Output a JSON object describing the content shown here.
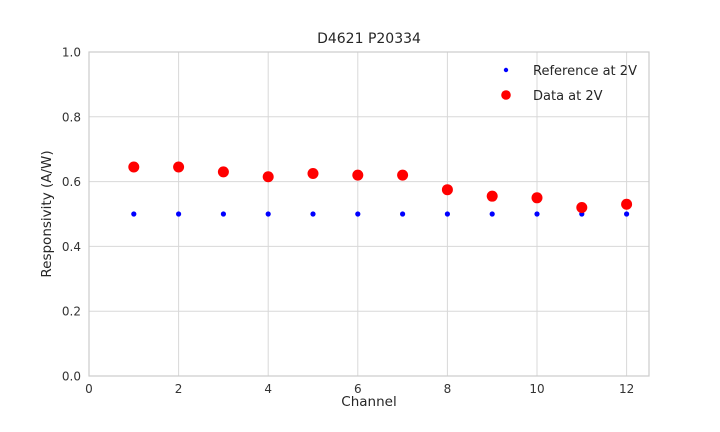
{
  "figure": {
    "background": "#ffffff",
    "grid_color": "#d8d8d8",
    "spine_color": "#cccccc",
    "text_color": "#262626"
  },
  "chart_data": {
    "type": "scatter",
    "title": "D4621 P20334",
    "xlabel": "Channel",
    "ylabel": "Responsivity (A/W)",
    "xlim": [
      0,
      12.5
    ],
    "ylim": [
      0.0,
      1.0
    ],
    "xticks": [
      "0",
      "2",
      "4",
      "6",
      "8",
      "10",
      "12"
    ],
    "yticks": [
      "0.0",
      "0.2",
      "0.4",
      "0.6",
      "0.8",
      "1.0"
    ],
    "grid": true,
    "legend_position": "upper right",
    "x": [
      1,
      2,
      3,
      4,
      5,
      6,
      7,
      8,
      9,
      10,
      11,
      12
    ],
    "series": [
      {
        "name": "Reference at 2V",
        "color": "#0000ff",
        "marker_radius": 2.6,
        "legend_marker_radius": 2.2,
        "values": [
          0.5,
          0.5,
          0.5,
          0.5,
          0.5,
          0.5,
          0.5,
          0.5,
          0.5,
          0.5,
          0.5,
          0.5
        ]
      },
      {
        "name": "Data at 2V",
        "color": "#ff0000",
        "marker_radius": 5.5,
        "legend_marker_radius": 4.8,
        "values": [
          0.645,
          0.645,
          0.63,
          0.615,
          0.625,
          0.62,
          0.62,
          0.575,
          0.555,
          0.55,
          0.52,
          0.53
        ]
      }
    ]
  }
}
